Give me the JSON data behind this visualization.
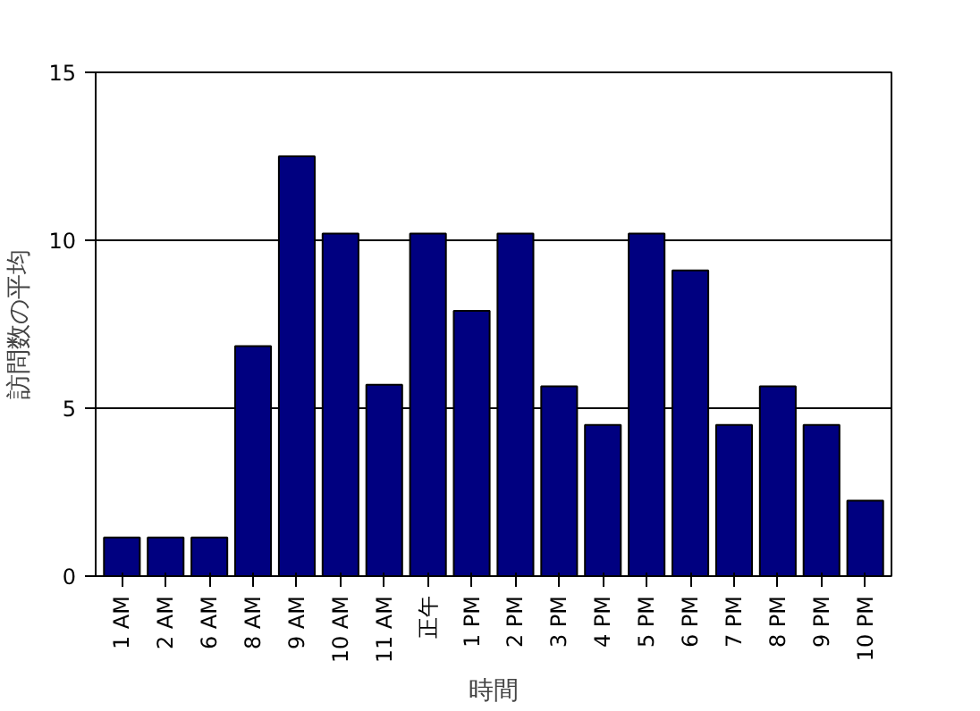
{
  "chart_data": {
    "type": "bar",
    "xlabel": "時間",
    "ylabel": "訪問数の平均",
    "categories": [
      "1 AM",
      "2 AM",
      "6 AM",
      "8 AM",
      "9 AM",
      "10 AM",
      "11 AM",
      "正午",
      "1 PM",
      "2 PM",
      "3 PM",
      "4 PM",
      "5 PM",
      "6 PM",
      "7 PM",
      "8 PM",
      "9 PM",
      "10 PM"
    ],
    "values": [
      1.15,
      1.15,
      1.15,
      6.85,
      12.5,
      10.2,
      5.7,
      10.2,
      7.9,
      10.2,
      5.65,
      4.5,
      10.2,
      9.1,
      4.5,
      5.65,
      4.5,
      2.25
    ],
    "color": "#000080",
    "ylim": [
      0,
      15
    ],
    "yticks": [
      0,
      5,
      10,
      15
    ],
    "grid": "y"
  }
}
